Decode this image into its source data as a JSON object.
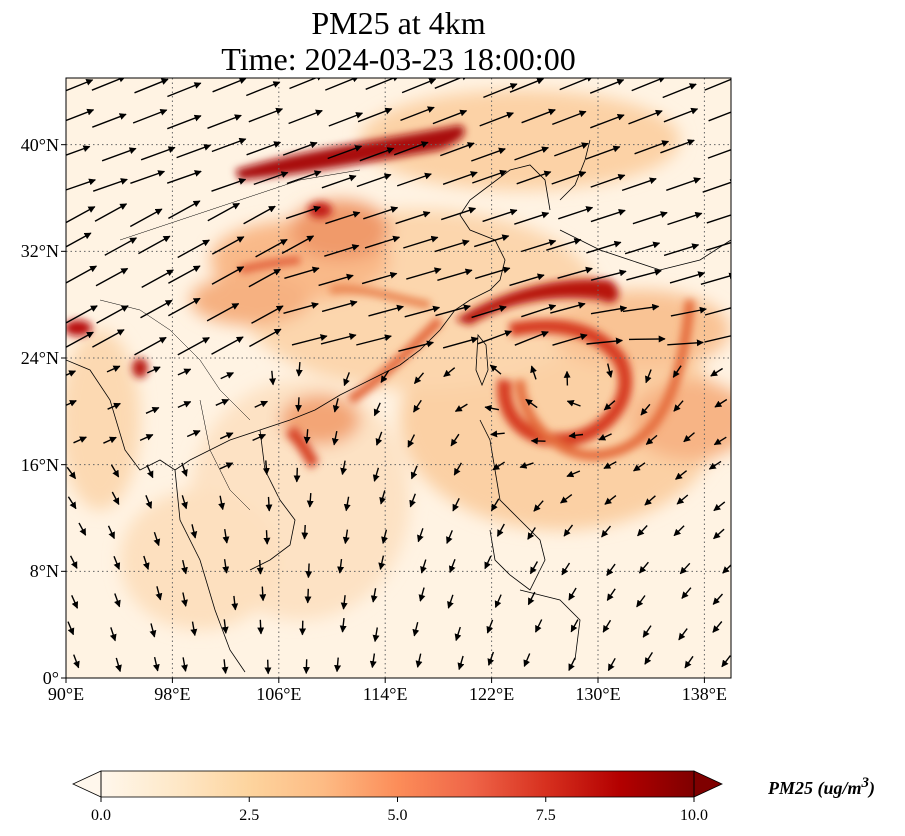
{
  "figure": {
    "title_line1": "PM25 at 4km",
    "title_line2": "Time: 2024-03-23 18:00:00"
  },
  "map": {
    "lon_range": [
      90,
      140
    ],
    "lat_range": [
      0,
      45
    ],
    "lon_ticks": [
      {
        "value": 90,
        "label": "90°E"
      },
      {
        "value": 98,
        "label": "98°E"
      },
      {
        "value": 106,
        "label": "106°E"
      },
      {
        "value": 114,
        "label": "114°E"
      },
      {
        "value": 122,
        "label": "122°E"
      },
      {
        "value": 130,
        "label": "130°E"
      },
      {
        "value": 138,
        "label": "138°E"
      }
    ],
    "lat_ticks": [
      {
        "value": 0,
        "label": "0°"
      },
      {
        "value": 8,
        "label": "8°N"
      },
      {
        "value": 16,
        "label": "16°N"
      },
      {
        "value": 24,
        "label": "24°N"
      },
      {
        "value": 32,
        "label": "32°N"
      },
      {
        "value": 40,
        "label": "40°N"
      }
    ],
    "gridlines": true,
    "field": "PM25",
    "field_units": "ug/m3",
    "vectors": "wind arrows",
    "colormap": "OrRd"
  },
  "colorbar": {
    "title": "PM25 (ug/m",
    "title_sup": "3",
    "title_close": ")",
    "range": [
      0,
      10
    ],
    "extend": "both",
    "ticks": [
      {
        "value": 0,
        "label": "0.0"
      },
      {
        "value": 2.5,
        "label": "2.5"
      },
      {
        "value": 5,
        "label": "5.0"
      },
      {
        "value": 7.5,
        "label": "7.5"
      },
      {
        "value": 10,
        "label": "10.0"
      }
    ],
    "colors": [
      "#fff7ec",
      "#fee8c8",
      "#fdd49e",
      "#fdbb84",
      "#fc8d59",
      "#ef6548",
      "#d7301f",
      "#b30000",
      "#7f0000"
    ]
  }
}
